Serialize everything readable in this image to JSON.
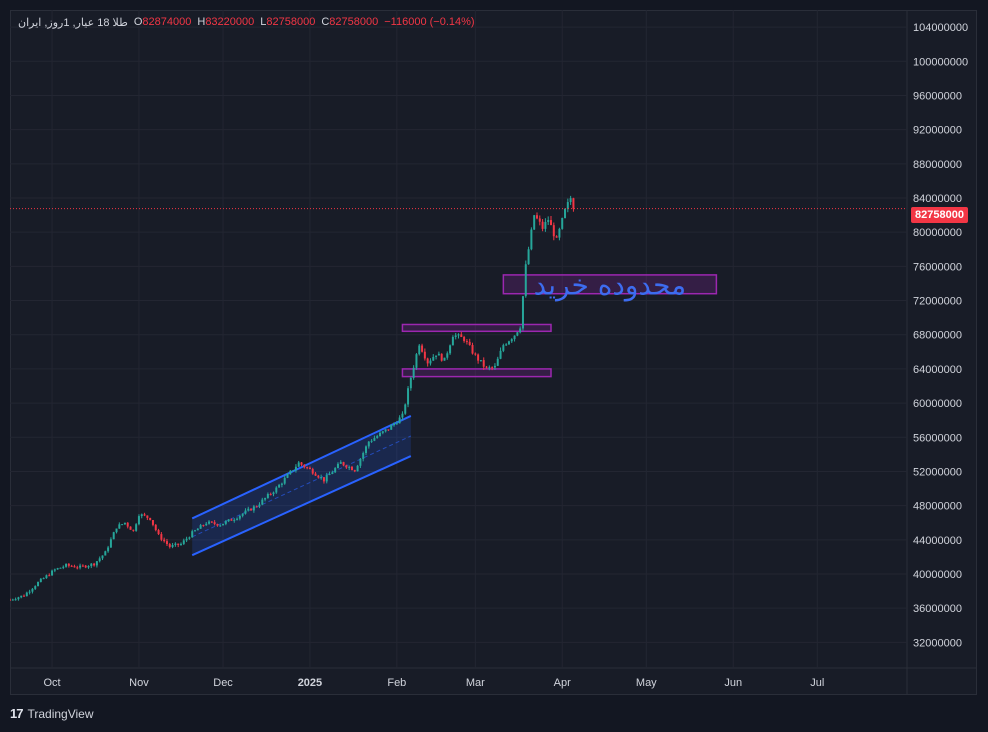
{
  "legend": {
    "symbol": "طلا 18 عیار, 1روز, ایران",
    "open_label": "O",
    "open": "82874000",
    "high_label": "H",
    "high": "83220000",
    "low_label": "L",
    "low": "82758000",
    "close_label": "C",
    "close": "82758000",
    "change": "−116000 (−0.14%)"
  },
  "brand": {
    "logo": "17",
    "name": "TradingView"
  },
  "price_badge": "82758000",
  "annotation": {
    "text": "محدوده خرید",
    "color": "#3d6cf0"
  },
  "colors": {
    "up": "#26a69a",
    "down": "#f23645",
    "channel": "#2962ff",
    "zone": "#9c27b0",
    "grid": "#232632"
  },
  "chart_data": {
    "type": "candlestick",
    "title": "",
    "y_ticks": [
      "32000000",
      "36000000",
      "40000000",
      "44000000",
      "48000000",
      "52000000",
      "56000000",
      "60000000",
      "64000000",
      "68000000",
      "72000000",
      "76000000",
      "80000000",
      "84000000",
      "88000000",
      "92000000",
      "96000000",
      "100000000",
      "104000000"
    ],
    "x_ticks": [
      {
        "label": "Oct",
        "day": 15
      },
      {
        "label": "Nov",
        "day": 46
      },
      {
        "label": "Dec",
        "day": 76
      },
      {
        "label": "2025",
        "day": 107
      },
      {
        "label": "Feb",
        "day": 138
      },
      {
        "label": "Mar",
        "day": 166
      },
      {
        "label": "Apr",
        "day": 197
      },
      {
        "label": "May",
        "day": 227
      },
      {
        "label": "Jun",
        "day": 258
      },
      {
        "label": "Jul",
        "day": 288
      }
    ],
    "ylim": [
      29000000,
      106000000
    ],
    "xlim": [
      0,
      320
    ],
    "last_price": 82758000,
    "price_path": [
      [
        0,
        37000000
      ],
      [
        5,
        37500000
      ],
      [
        10,
        39000000
      ],
      [
        16,
        40500000
      ],
      [
        20,
        41000000
      ],
      [
        25,
        40800000
      ],
      [
        30,
        41200000
      ],
      [
        34,
        42500000
      ],
      [
        38,
        45500000
      ],
      [
        41,
        46000000
      ],
      [
        44,
        45000000
      ],
      [
        46,
        47000000
      ],
      [
        50,
        46500000
      ],
      [
        53,
        44500000
      ],
      [
        57,
        43200000
      ],
      [
        61,
        43500000
      ],
      [
        65,
        44800000
      ],
      [
        70,
        46000000
      ],
      [
        75,
        45800000
      ],
      [
        80,
        46500000
      ],
      [
        88,
        48000000
      ],
      [
        95,
        50000000
      ],
      [
        103,
        53000000
      ],
      [
        108,
        52000000
      ],
      [
        112,
        51000000
      ],
      [
        118,
        53000000
      ],
      [
        123,
        52200000
      ],
      [
        128,
        55500000
      ],
      [
        135,
        57000000
      ],
      [
        140,
        58500000
      ],
      [
        143,
        63000000
      ],
      [
        146,
        67000000
      ],
      [
        149,
        64800000
      ],
      [
        152,
        65800000
      ],
      [
        155,
        65000000
      ],
      [
        158,
        68000000
      ],
      [
        162,
        67500000
      ],
      [
        166,
        65500000
      ],
      [
        170,
        64000000
      ],
      [
        173,
        64200000
      ],
      [
        176,
        66800000
      ],
      [
        180,
        68000000
      ],
      [
        182,
        69000000
      ],
      [
        184,
        76000000
      ],
      [
        187,
        82000000
      ],
      [
        190,
        80500000
      ],
      [
        192,
        81500000
      ],
      [
        195,
        79000000
      ],
      [
        198,
        82500000
      ],
      [
        200,
        84000000
      ],
      [
        201,
        82758000
      ]
    ],
    "channel": {
      "upper": [
        [
          65,
          46500000
        ],
        [
          143,
          58500000
        ]
      ],
      "lower": [
        [
          65,
          42200000
        ],
        [
          143,
          53800000
        ]
      ]
    },
    "zones": [
      {
        "x": [
          140,
          193
        ],
        "y": [
          68400000,
          69200000
        ]
      },
      {
        "x": [
          140,
          193
        ],
        "y": [
          63100000,
          64000000
        ]
      },
      {
        "x": [
          176,
          252
        ],
        "y": [
          72800000,
          75000000
        ]
      }
    ]
  }
}
